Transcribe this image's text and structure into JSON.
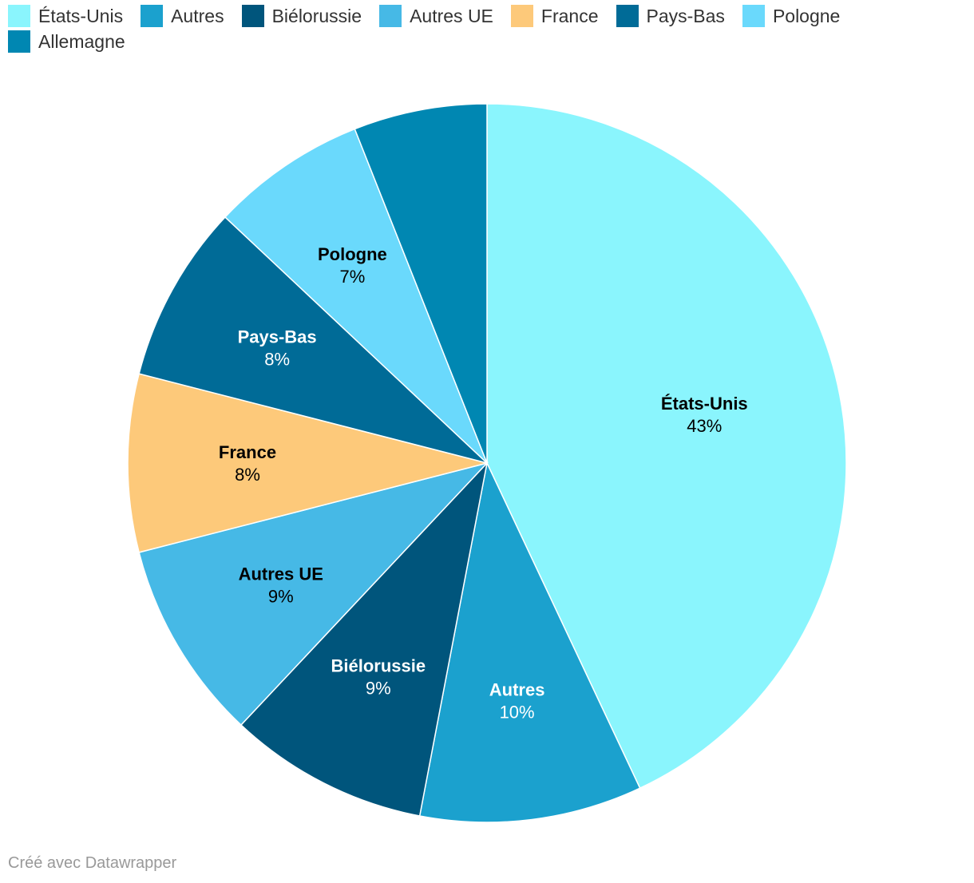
{
  "chart_data": {
    "type": "pie",
    "categories": [
      "États-Unis",
      "Autres",
      "Biélorussie",
      "Autres UE",
      "France",
      "Pays-Bas",
      "Pologne",
      "Allemagne"
    ],
    "values": [
      43,
      10,
      9,
      9,
      8,
      8,
      7,
      6
    ],
    "value_labels": [
      "43%",
      "10%",
      "9%",
      "9%",
      "8%",
      "8%",
      "7%",
      ""
    ],
    "colors": [
      "#8af5fd",
      "#1ba1ce",
      "#00557c",
      "#46b9e6",
      "#fdc97a",
      "#006b97",
      "#6ad9fc",
      "#0087b2"
    ],
    "label_colors": [
      "#000000",
      "#ffffff",
      "#ffffff",
      "#000000",
      "#000000",
      "#ffffff",
      "#000000",
      "#ffffff"
    ],
    "show_labels": [
      true,
      true,
      true,
      true,
      true,
      true,
      true,
      false
    ],
    "start_angle_deg": 0,
    "direction": "clockwise",
    "legend_position": "top-left"
  },
  "credit": "Créé avec Datawrapper"
}
